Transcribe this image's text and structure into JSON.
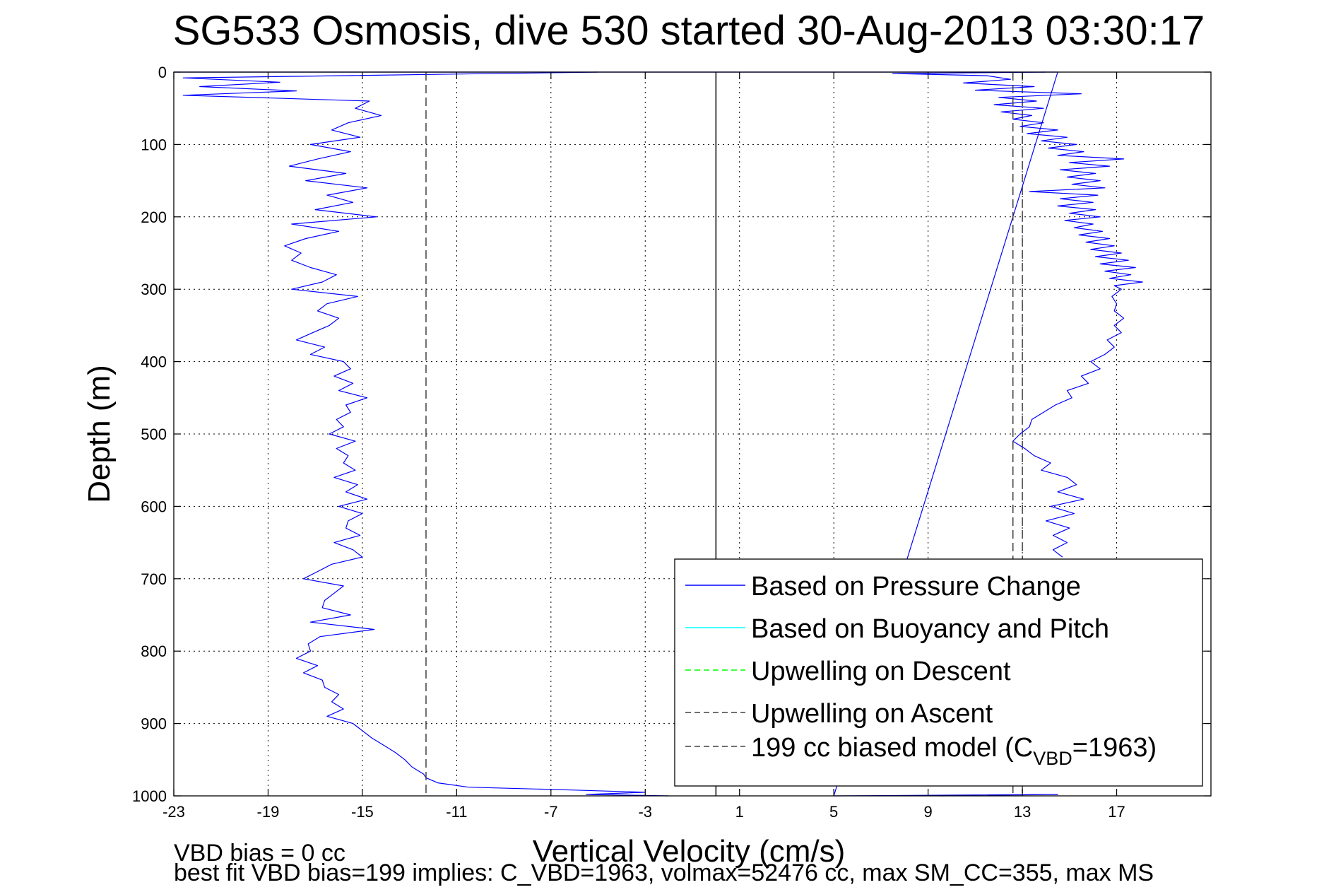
{
  "chart_data": {
    "type": "line",
    "title": "SG533 Osmosis, dive 530 started 30-Aug-2013 03:30:17",
    "xlabel": "Vertical Velocity (cm/s)",
    "ylabel": "Depth (m)",
    "xlim": [
      -23,
      21
    ],
    "ylim": [
      0,
      1000
    ],
    "y_reversed": true,
    "grid": true,
    "x_ticks": [
      -23,
      -19,
      -15,
      -11,
      -7,
      -3,
      1,
      5,
      9,
      13,
      17
    ],
    "y_ticks": [
      0,
      100,
      200,
      300,
      400,
      500,
      600,
      700,
      800,
      900,
      1000
    ],
    "legend_position": "bottom-right",
    "legend": [
      {
        "label": "Based on Pressure Change",
        "color": "#0000ff",
        "dash": "solid"
      },
      {
        "label": "Based on Buoyancy and Pitch",
        "color": "#00ffff",
        "dash": "solid"
      },
      {
        "label": "Upwelling on Descent",
        "color": "#00ff00",
        "dash": "dashed"
      },
      {
        "label": "Upwelling on Ascent",
        "color": "#404040",
        "dash": "dashed"
      },
      {
        "label": "199 cc biased model (C",
        "sub": "VBD",
        "suffix": "=1963)",
        "color": "#404040",
        "dash": "dashed"
      }
    ],
    "series": [
      {
        "name": "Based on Pressure Change",
        "color": "#0000ff",
        "segments": [
          {
            "part": "descent",
            "depth": [
              0,
              8,
              14,
              20,
              26,
              32,
              40,
              50,
              60,
              70,
              80,
              90,
              100,
              110,
              120,
              130,
              140,
              150,
              160,
              170,
              180,
              190,
              200,
              210,
              220,
              230,
              240,
              250,
              260,
              270,
              280,
              290,
              300,
              310,
              320,
              330,
              340,
              350,
              360,
              370,
              380,
              390,
              400,
              410,
              420,
              430,
              440,
              450,
              460,
              470,
              480,
              490,
              500,
              510,
              520,
              530,
              540,
              550,
              560,
              570,
              580,
              590,
              600,
              610,
              620,
              630,
              640,
              650,
              660,
              670,
              680,
              690,
              700,
              710,
              720,
              730,
              740,
              750,
              760,
              770,
              780,
              790,
              800,
              810,
              820,
              830,
              840,
              850,
              860,
              870,
              880,
              890,
              900,
              910,
              920,
              930,
              940,
              950,
              960,
              970,
              975,
              982,
              988,
              992,
              995,
              998,
              1000
            ],
            "velocity": [
              -5.0,
              -22.6,
              -18.5,
              -21.9,
              -17.8,
              -22.6,
              -14.7,
              -15.3,
              -14.2,
              -15.6,
              -16.3,
              -15.1,
              -17.2,
              -15.5,
              -16.9,
              -18.1,
              -15.7,
              -17.4,
              -14.8,
              -16.5,
              -15.4,
              -17.0,
              -14.4,
              -18.0,
              -16.0,
              -17.4,
              -18.3,
              -17.6,
              -18.0,
              -17.2,
              -16.1,
              -16.7,
              -18.0,
              -15.2,
              -16.5,
              -16.9,
              -16.0,
              -16.4,
              -17.1,
              -17.8,
              -16.6,
              -17.2,
              -15.8,
              -15.5,
              -16.2,
              -15.4,
              -16.0,
              -14.8,
              -15.7,
              -15.5,
              -16.1,
              -15.8,
              -16.4,
              -15.3,
              -16.1,
              -15.6,
              -15.8,
              -15.3,
              -16.2,
              -15.2,
              -15.7,
              -14.8,
              -16.0,
              -15.0,
              -15.6,
              -15.7,
              -15.1,
              -16.2,
              -15.4,
              -15.0,
              -16.3,
              -16.9,
              -17.5,
              -15.8,
              -16.2,
              -16.6,
              -16.7,
              -15.5,
              -17.2,
              -14.5,
              -16.8,
              -17.3,
              -17.2,
              -17.8,
              -16.9,
              -17.5,
              -16.7,
              -16.6,
              -16.0,
              -16.3,
              -15.8,
              -16.5,
              -15.4,
              -15.0,
              -14.6,
              -14.1,
              -13.6,
              -13.2,
              -12.9,
              -12.4,
              -12.3,
              -11.8,
              -10.5,
              -6.0,
              -3.0,
              -5.5,
              -2.0
            ]
          },
          {
            "part": "ascent",
            "depth": [
              0,
              2,
              5,
              10,
              15,
              20,
              25,
              30,
              35,
              40,
              45,
              50,
              55,
              60,
              65,
              70,
              75,
              80,
              85,
              90,
              95,
              100,
              105,
              110,
              115,
              120,
              125,
              130,
              135,
              140,
              145,
              150,
              155,
              160,
              165,
              170,
              175,
              180,
              185,
              190,
              195,
              200,
              205,
              210,
              215,
              220,
              225,
              230,
              235,
              240,
              245,
              250,
              255,
              260,
              265,
              270,
              275,
              280,
              285,
              290,
              295,
              300,
              310,
              320,
              330,
              340,
              350,
              360,
              370,
              380,
              390,
              400,
              410,
              420,
              430,
              440,
              450,
              460,
              470,
              480,
              490,
              500,
              510,
              520,
              530,
              540,
              550,
              560,
              570,
              580,
              590,
              600,
              610,
              620,
              630,
              640,
              650,
              660,
              670
            ],
            "velocity": [
              14.0,
              7.5,
              11.5,
              12.5,
              10.5,
              13.5,
              11.0,
              15.5,
              12.0,
              13.6,
              11.8,
              13.9,
              12.1,
              13.4,
              12.6,
              13.9,
              12.9,
              14.5,
              13.2,
              14.9,
              13.8,
              15.3,
              14.1,
              15.6,
              14.5,
              17.3,
              15.0,
              16.7,
              14.6,
              16.1,
              14.9,
              16.3,
              15.1,
              16.5,
              13.3,
              16.2,
              14.6,
              16.0,
              14.5,
              16.1,
              15.0,
              16.3,
              14.8,
              16.0,
              15.2,
              16.4,
              15.4,
              16.7,
              15.7,
              16.9,
              15.9,
              17.2,
              16.1,
              17.5,
              16.3,
              17.8,
              16.5,
              17.6,
              16.7,
              18.1,
              16.9,
              17.2,
              16.8,
              17.0,
              16.9,
              17.3,
              16.9,
              17.2,
              16.6,
              16.9,
              16.5,
              15.9,
              16.3,
              15.5,
              15.8,
              14.9,
              15.1,
              14.4,
              13.9,
              13.4,
              13.3,
              12.9,
              12.6,
              13.1,
              13.5,
              14.2,
              13.8,
              14.9,
              15.3,
              14.5,
              15.6,
              14.2,
              15.2,
              14.0,
              15.0,
              14.3,
              14.9,
              14.3,
              14.7
            ]
          },
          {
            "part": "surface-to-bottom transit",
            "depth": [
              0,
              0,
              0,
              1000,
              998,
              1000
            ],
            "velocity": [
              -23.0,
              5.0,
              14.5,
              5.0,
              14.5,
              9.5
            ]
          }
        ]
      },
      {
        "name": "Upwelling on Ascent",
        "color": "#404040",
        "dash": "dashed",
        "constant_velocity": 12.6,
        "depth_range": [
          0,
          1000
        ]
      },
      {
        "name": "199 cc biased model (C_VBD=1963)",
        "color": "#404040",
        "dash": "dashed",
        "constant_velocity": -12.3,
        "depth_range": [
          0,
          1000
        ]
      }
    ],
    "reference_lines": [
      {
        "kind": "vertical",
        "velocity": 0.0,
        "color": "#000000",
        "dash": "solid"
      },
      {
        "kind": "vertical",
        "velocity": 13.0,
        "color": "#404040",
        "dash": "dashed"
      }
    ]
  },
  "footer": {
    "line1": "VBD bias = 0 cc",
    "line2": "best fit VBD bias=199 implies: C_VBD=1963, volmax=52476 cc, max SM_CC=355, max MS"
  }
}
